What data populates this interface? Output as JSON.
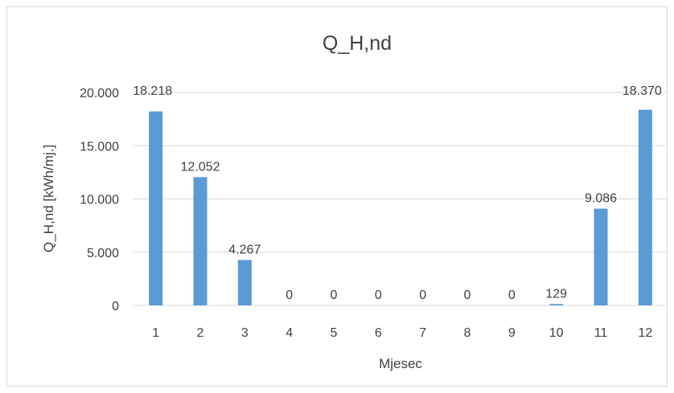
{
  "chart_data": {
    "type": "bar",
    "title": "Q_H,nd",
    "xlabel": "Mjesec",
    "ylabel": "Q_H,nd [kWh/mj.]",
    "categories": [
      "1",
      "2",
      "3",
      "4",
      "5",
      "6",
      "7",
      "8",
      "9",
      "10",
      "11",
      "12"
    ],
    "values": [
      18218,
      12052,
      4267,
      0,
      0,
      0,
      0,
      0,
      0,
      129,
      9086,
      18370
    ],
    "data_labels": [
      "18.218",
      "12.052",
      "4.267",
      "0",
      "0",
      "0",
      "0",
      "0",
      "0",
      "129",
      "9.086",
      "18.370"
    ],
    "ylim": [
      0,
      20000
    ],
    "yticks": [
      0,
      5000,
      10000,
      15000,
      20000
    ],
    "ytick_labels": [
      "0",
      "5.000",
      "10.000",
      "15.000",
      "20.000"
    ],
    "grid": true,
    "legend": "none",
    "bar_color": "#5b9bd5"
  }
}
